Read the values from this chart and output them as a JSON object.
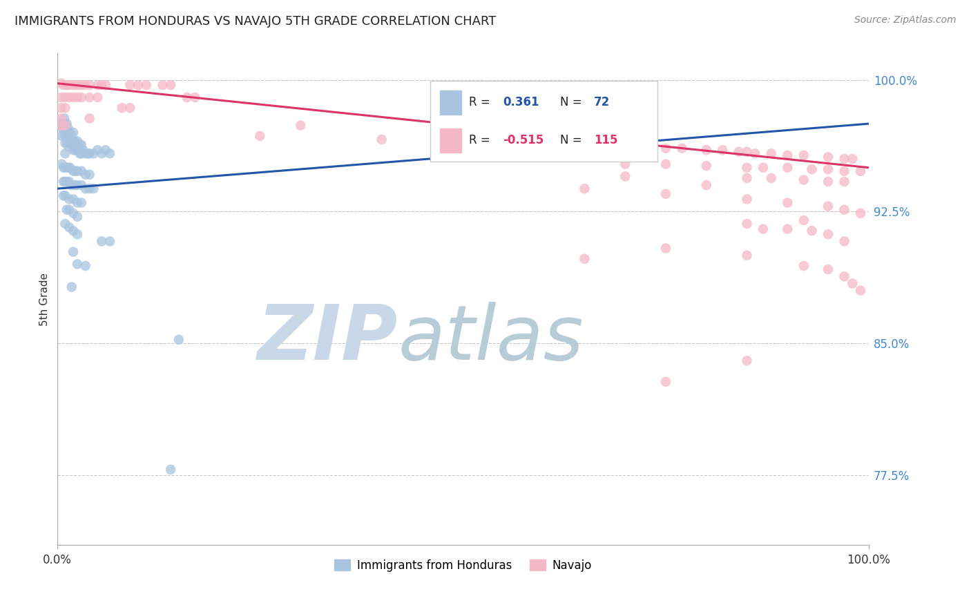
{
  "title": "IMMIGRANTS FROM HONDURAS VS NAVAJO 5TH GRADE CORRELATION CHART",
  "source": "Source: ZipAtlas.com",
  "ylabel": "5th Grade",
  "xlim": [
    0.0,
    1.0
  ],
  "ylim": [
    0.735,
    1.015
  ],
  "y_tick_labels": [
    "100.0%",
    "92.5%",
    "85.0%",
    "77.5%"
  ],
  "y_tick_positions": [
    1.0,
    0.925,
    0.85,
    0.775
  ],
  "blue_color": "#a8c4e0",
  "pink_color": "#f4b8c8",
  "line_blue_color": "#2255aa",
  "line_pink_color": "#dd3366",
  "watermark_zip": "ZIP",
  "watermark_atlas": "atlas",
  "watermark_zip_color": "#c8d8e8",
  "watermark_atlas_color": "#b8ccd8",
  "background_color": "#ffffff",
  "grid_color": "#bbbbbb",
  "title_color": "#222222",
  "right_tick_color": "#4488cc",
  "legend_box_edge": "#cccccc",
  "blue_points": [
    [
      0.005,
      0.975
    ],
    [
      0.006,
      0.968
    ],
    [
      0.007,
      0.972
    ],
    [
      0.008,
      0.975
    ],
    [
      0.009,
      0.978
    ],
    [
      0.01,
      0.972
    ],
    [
      0.01,
      0.968
    ],
    [
      0.01,
      0.964
    ],
    [
      0.01,
      0.958
    ],
    [
      0.012,
      0.975
    ],
    [
      0.012,
      0.97
    ],
    [
      0.012,
      0.964
    ],
    [
      0.014,
      0.972
    ],
    [
      0.014,
      0.967
    ],
    [
      0.014,
      0.962
    ],
    [
      0.016,
      0.97
    ],
    [
      0.016,
      0.965
    ],
    [
      0.018,
      0.968
    ],
    [
      0.018,
      0.963
    ],
    [
      0.02,
      0.97
    ],
    [
      0.02,
      0.965
    ],
    [
      0.02,
      0.96
    ],
    [
      0.022,
      0.965
    ],
    [
      0.022,
      0.96
    ],
    [
      0.025,
      0.965
    ],
    [
      0.025,
      0.96
    ],
    [
      0.028,
      0.963
    ],
    [
      0.028,
      0.958
    ],
    [
      0.03,
      0.963
    ],
    [
      0.03,
      0.958
    ],
    [
      0.032,
      0.96
    ],
    [
      0.035,
      0.958
    ],
    [
      0.038,
      0.958
    ],
    [
      0.04,
      0.958
    ],
    [
      0.045,
      0.958
    ],
    [
      0.05,
      0.96
    ],
    [
      0.055,
      0.958
    ],
    [
      0.06,
      0.96
    ],
    [
      0.065,
      0.958
    ],
    [
      0.006,
      0.952
    ],
    [
      0.008,
      0.95
    ],
    [
      0.01,
      0.95
    ],
    [
      0.012,
      0.95
    ],
    [
      0.014,
      0.95
    ],
    [
      0.016,
      0.95
    ],
    [
      0.02,
      0.948
    ],
    [
      0.022,
      0.948
    ],
    [
      0.025,
      0.948
    ],
    [
      0.03,
      0.948
    ],
    [
      0.035,
      0.946
    ],
    [
      0.04,
      0.946
    ],
    [
      0.008,
      0.942
    ],
    [
      0.01,
      0.942
    ],
    [
      0.012,
      0.942
    ],
    [
      0.015,
      0.942
    ],
    [
      0.018,
      0.94
    ],
    [
      0.022,
      0.94
    ],
    [
      0.025,
      0.94
    ],
    [
      0.03,
      0.94
    ],
    [
      0.035,
      0.938
    ],
    [
      0.04,
      0.938
    ],
    [
      0.045,
      0.938
    ],
    [
      0.008,
      0.934
    ],
    [
      0.01,
      0.934
    ],
    [
      0.015,
      0.932
    ],
    [
      0.02,
      0.932
    ],
    [
      0.025,
      0.93
    ],
    [
      0.03,
      0.93
    ],
    [
      0.012,
      0.926
    ],
    [
      0.015,
      0.926
    ],
    [
      0.02,
      0.924
    ],
    [
      0.025,
      0.922
    ],
    [
      0.01,
      0.918
    ],
    [
      0.015,
      0.916
    ],
    [
      0.02,
      0.914
    ],
    [
      0.025,
      0.912
    ],
    [
      0.055,
      0.908
    ],
    [
      0.065,
      0.908
    ],
    [
      0.02,
      0.902
    ],
    [
      0.025,
      0.895
    ],
    [
      0.035,
      0.894
    ],
    [
      0.018,
      0.882
    ],
    [
      0.15,
      0.852
    ],
    [
      0.14,
      0.778
    ]
  ],
  "pink_points": [
    [
      0.005,
      0.998
    ],
    [
      0.008,
      0.997
    ],
    [
      0.012,
      0.997
    ],
    [
      0.015,
      0.997
    ],
    [
      0.02,
      0.997
    ],
    [
      0.025,
      0.997
    ],
    [
      0.03,
      0.997
    ],
    [
      0.035,
      0.997
    ],
    [
      0.04,
      0.997
    ],
    [
      0.05,
      0.997
    ],
    [
      0.055,
      0.997
    ],
    [
      0.06,
      0.997
    ],
    [
      0.09,
      0.997
    ],
    [
      0.1,
      0.997
    ],
    [
      0.11,
      0.997
    ],
    [
      0.13,
      0.997
    ],
    [
      0.14,
      0.997
    ],
    [
      0.005,
      0.99
    ],
    [
      0.01,
      0.99
    ],
    [
      0.015,
      0.99
    ],
    [
      0.02,
      0.99
    ],
    [
      0.025,
      0.99
    ],
    [
      0.03,
      0.99
    ],
    [
      0.04,
      0.99
    ],
    [
      0.05,
      0.99
    ],
    [
      0.16,
      0.99
    ],
    [
      0.17,
      0.99
    ],
    [
      0.005,
      0.984
    ],
    [
      0.01,
      0.984
    ],
    [
      0.08,
      0.984
    ],
    [
      0.09,
      0.984
    ],
    [
      0.005,
      0.978
    ],
    [
      0.04,
      0.978
    ],
    [
      0.005,
      0.974
    ],
    [
      0.01,
      0.974
    ],
    [
      0.3,
      0.974
    ],
    [
      0.5,
      0.974
    ],
    [
      0.25,
      0.968
    ],
    [
      0.4,
      0.966
    ],
    [
      0.6,
      0.964
    ],
    [
      0.55,
      0.958
    ],
    [
      0.7,
      0.962
    ],
    [
      0.72,
      0.961
    ],
    [
      0.75,
      0.961
    ],
    [
      0.77,
      0.961
    ],
    [
      0.8,
      0.96
    ],
    [
      0.82,
      0.96
    ],
    [
      0.84,
      0.959
    ],
    [
      0.85,
      0.959
    ],
    [
      0.86,
      0.958
    ],
    [
      0.88,
      0.958
    ],
    [
      0.9,
      0.957
    ],
    [
      0.92,
      0.957
    ],
    [
      0.95,
      0.956
    ],
    [
      0.97,
      0.955
    ],
    [
      0.98,
      0.955
    ],
    [
      0.7,
      0.952
    ],
    [
      0.75,
      0.952
    ],
    [
      0.8,
      0.951
    ],
    [
      0.85,
      0.95
    ],
    [
      0.87,
      0.95
    ],
    [
      0.9,
      0.95
    ],
    [
      0.93,
      0.949
    ],
    [
      0.95,
      0.949
    ],
    [
      0.97,
      0.948
    ],
    [
      0.99,
      0.948
    ],
    [
      0.85,
      0.944
    ],
    [
      0.88,
      0.944
    ],
    [
      0.92,
      0.943
    ],
    [
      0.95,
      0.942
    ],
    [
      0.97,
      0.942
    ],
    [
      0.65,
      0.938
    ],
    [
      0.75,
      0.935
    ],
    [
      0.85,
      0.932
    ],
    [
      0.9,
      0.93
    ],
    [
      0.95,
      0.928
    ],
    [
      0.97,
      0.926
    ],
    [
      0.99,
      0.924
    ],
    [
      0.92,
      0.92
    ],
    [
      0.85,
      0.918
    ],
    [
      0.87,
      0.915
    ],
    [
      0.9,
      0.915
    ],
    [
      0.93,
      0.914
    ],
    [
      0.95,
      0.912
    ],
    [
      0.97,
      0.908
    ],
    [
      0.75,
      0.904
    ],
    [
      0.85,
      0.9
    ],
    [
      0.65,
      0.898
    ],
    [
      0.92,
      0.894
    ],
    [
      0.95,
      0.892
    ],
    [
      0.97,
      0.888
    ],
    [
      0.98,
      0.884
    ],
    [
      0.99,
      0.88
    ],
    [
      0.7,
      0.945
    ],
    [
      0.8,
      0.94
    ],
    [
      0.85,
      0.84
    ],
    [
      0.75,
      0.828
    ]
  ],
  "blue_line": {
    "x0": 0.0,
    "y0": 0.938,
    "x1": 1.0,
    "y1": 0.975
  },
  "pink_line": {
    "x0": 0.0,
    "y0": 0.998,
    "x1": 1.0,
    "y1": 0.95
  }
}
